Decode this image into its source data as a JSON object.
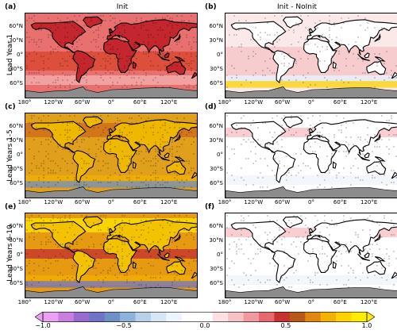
{
  "columns": {
    "left": "Init",
    "right": "Init - NoInit"
  },
  "rows": [
    "Lead Year 1",
    "Lead Years 1-5",
    "Lead Years 6-10"
  ],
  "panels": {
    "a": {
      "letter": "(a)",
      "style": "skill-warm"
    },
    "b": {
      "letter": "(b)",
      "style": "diff-light"
    },
    "c": {
      "letter": "(c)",
      "style": "skill-hot"
    },
    "d": {
      "letter": "(d)",
      "style": "diff-white"
    },
    "e": {
      "letter": "(e)",
      "style": "skill-hot-cold-south"
    },
    "f": {
      "letter": "(f)",
      "style": "diff-white"
    }
  },
  "lat_ticks": [
    "60°N",
    "30°N",
    "0°",
    "30°S",
    "60°S"
  ],
  "lon_ticks": [
    "180°",
    "120°W",
    "60°W",
    "0°",
    "60°E",
    "120°E"
  ],
  "colorbar": {
    "min_label": "−1.0",
    "labels": [
      "−1.0",
      "−0.5",
      "0.0",
      "0.5",
      "1.0"
    ],
    "colors": [
      "#e9a0f0",
      "#c77fe0",
      "#9a6bcf",
      "#6f74c9",
      "#6e90c6",
      "#8fb2dc",
      "#b7d1ea",
      "#d6e6f4",
      "#eef4fb",
      "#ffffff",
      "#ffffff",
      "#fde0e2",
      "#f8c1c5",
      "#f09a9f",
      "#e4686f",
      "#c4332f",
      "#b8581a",
      "#df8710",
      "#f3b100",
      "#ffd200",
      "#ffec00"
    ]
  }
}
